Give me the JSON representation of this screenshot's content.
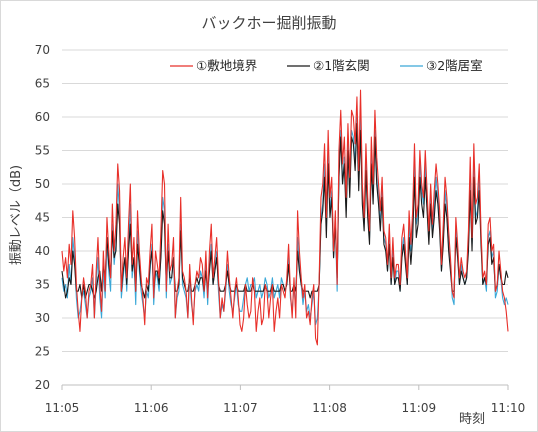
{
  "chart_data": {
    "type": "line",
    "title": "バックホー掘削振動",
    "xlabel": "時刻",
    "ylabel": "振動レベル（dB)",
    "ylim": [
      20,
      70
    ],
    "yticks": [
      "20",
      "25",
      "30",
      "35",
      "40",
      "45",
      "50",
      "55",
      "60",
      "65",
      "70"
    ],
    "xlim": [
      "11:05",
      "11:10"
    ],
    "xticks": [
      "11:05",
      "11:06",
      "11:07",
      "11:08",
      "11:09",
      "11:10"
    ],
    "grid": true,
    "legend_position": "top-right",
    "sample_interval_seconds": 2,
    "series": [
      {
        "name": "①敷地境界",
        "color": "#e8302a",
        "values": [
          40,
          37,
          39,
          36,
          41,
          38,
          46,
          42,
          35,
          31,
          28,
          33,
          36,
          34,
          30,
          34,
          35,
          38,
          30,
          37,
          42,
          35,
          31,
          40,
          34,
          45,
          40,
          36,
          47,
          40,
          44,
          53,
          49,
          34,
          39,
          42,
          36,
          44,
          50,
          38,
          42,
          34,
          46,
          40,
          36,
          33,
          29,
          36,
          35,
          40,
          44,
          33,
          40,
          38,
          36,
          43,
          52,
          50,
          34,
          44,
          37,
          38,
          42,
          30,
          34,
          36,
          48,
          37,
          36,
          34,
          30,
          38,
          33,
          29,
          35,
          37,
          36,
          39,
          38,
          34,
          40,
          33,
          40,
          44,
          36,
          39,
          42,
          36,
          30,
          33,
          31,
          35,
          40,
          36,
          33,
          30,
          34,
          36,
          33,
          29,
          28,
          30,
          35,
          32,
          30,
          31,
          36,
          34,
          28,
          31,
          33,
          29,
          30,
          35,
          34,
          30,
          33,
          35,
          28,
          31,
          33,
          30,
          35,
          34,
          33,
          36,
          41,
          34,
          30,
          36,
          30,
          46,
          40,
          36,
          33,
          35,
          30,
          31,
          29,
          33,
          35,
          27,
          26,
          36,
          48,
          50,
          56,
          45,
          58,
          48,
          51,
          40,
          46,
          35,
          55,
          61,
          53,
          57,
          48,
          59,
          51,
          61,
          60,
          56,
          63,
          52,
          64,
          50,
          45,
          56,
          48,
          43,
          57,
          50,
          61,
          54,
          50,
          46,
          51,
          43,
          42,
          38,
          44,
          36,
          42,
          36,
          38,
          38,
          35,
          42,
          44,
          40,
          36,
          46,
          41,
          46,
          56,
          45,
          47,
          55,
          50,
          48,
          55,
          49,
          43,
          50,
          44,
          49,
          53,
          50,
          46,
          38,
          44,
          51,
          48,
          43,
          39,
          34,
          33,
          45,
          41,
          36,
          39,
          37,
          36,
          37,
          43,
          54,
          42,
          56,
          47,
          48,
          53,
          43,
          36,
          37,
          35,
          44,
          45,
          40,
          41,
          34,
          35,
          40,
          37,
          34,
          33,
          31,
          28
        ]
      },
      {
        "name": "②1階玄関",
        "color": "#1a1a1a",
        "values": [
          37,
          35,
          33,
          34,
          36,
          35,
          40,
          38,
          34,
          34,
          35,
          33,
          35,
          33,
          34,
          35,
          35,
          34,
          33,
          34,
          36,
          37,
          34,
          38,
          36,
          42,
          38,
          36,
          43,
          39,
          40,
          47,
          44,
          34,
          37,
          39,
          35,
          40,
          44,
          37,
          39,
          34,
          41,
          38,
          35,
          34,
          33,
          35,
          34,
          38,
          40,
          34,
          37,
          37,
          35,
          39,
          46,
          44,
          35,
          40,
          36,
          36,
          39,
          34,
          34,
          35,
          43,
          36,
          35,
          34,
          34,
          36,
          34,
          34,
          35,
          36,
          35,
          36,
          36,
          34,
          37,
          34,
          37,
          40,
          35,
          37,
          39,
          35,
          34,
          34,
          34,
          35,
          37,
          35,
          34,
          34,
          34,
          35,
          34,
          34,
          34,
          34,
          35,
          34,
          34,
          34,
          35,
          34,
          34,
          34,
          34,
          34,
          34,
          35,
          34,
          34,
          34,
          35,
          34,
          34,
          34,
          34,
          35,
          35,
          34,
          35,
          38,
          34,
          34,
          35,
          34,
          40,
          37,
          35,
          34,
          34,
          34,
          34,
          33,
          34,
          34,
          34,
          34,
          35,
          44,
          46,
          51,
          42,
          53,
          45,
          48,
          39,
          44,
          36,
          51,
          57,
          50,
          53,
          45,
          55,
          48,
          57,
          56,
          52,
          59,
          49,
          58,
          47,
          43,
          52,
          45,
          41,
          53,
          47,
          57,
          50,
          47,
          43,
          48,
          41,
          40,
          37,
          41,
          35,
          39,
          35,
          36,
          36,
          34,
          39,
          41,
          38,
          35,
          42,
          38,
          42,
          51,
          42,
          44,
          51,
          47,
          45,
          51,
          46,
          41,
          47,
          42,
          45,
          49,
          47,
          43,
          37,
          41,
          47,
          45,
          40,
          37,
          34,
          34,
          42,
          39,
          35,
          37,
          36,
          35,
          36,
          40,
          49,
          40,
          51,
          44,
          45,
          49,
          41,
          35,
          36,
          35,
          41,
          42,
          38,
          39,
          34,
          35,
          38,
          36,
          35,
          35,
          37,
          36
        ]
      },
      {
        "name": "③2階居室",
        "color": "#3aa8d8",
        "values": [
          36,
          34,
          35,
          33,
          38,
          35,
          42,
          39,
          33,
          30,
          31,
          33,
          34,
          32,
          30,
          33,
          34,
          36,
          30,
          35,
          39,
          33,
          30,
          37,
          33,
          41,
          37,
          34,
          44,
          38,
          41,
          50,
          46,
          33,
          36,
          39,
          34,
          41,
          47,
          36,
          39,
          32,
          43,
          37,
          34,
          32,
          30,
          34,
          33,
          37,
          41,
          32,
          37,
          36,
          34,
          40,
          48,
          46,
          33,
          41,
          35,
          36,
          39,
          30,
          33,
          34,
          44,
          35,
          34,
          33,
          30,
          36,
          32,
          30,
          34,
          35,
          34,
          37,
          36,
          33,
          38,
          32,
          38,
          41,
          35,
          37,
          40,
          34,
          30,
          32,
          31,
          34,
          38,
          34,
          32,
          31,
          33,
          35,
          32,
          31,
          31,
          33,
          35,
          36,
          34,
          35,
          35,
          36,
          33,
          34,
          35,
          33,
          34,
          36,
          35,
          33,
          34,
          36,
          33,
          34,
          35,
          33,
          36,
          35,
          34,
          35,
          39,
          33,
          31,
          35,
          31,
          42,
          38,
          35,
          32,
          34,
          31,
          32,
          30,
          32,
          34,
          29,
          30,
          35,
          45,
          47,
          53,
          43,
          55,
          46,
          49,
          39,
          44,
          34,
          52,
          58,
          50,
          54,
          46,
          56,
          49,
          58,
          57,
          53,
          60,
          50,
          61,
          48,
          44,
          53,
          46,
          42,
          54,
          48,
          58,
          51,
          48,
          44,
          49,
          42,
          41,
          37,
          42,
          35,
          40,
          35,
          37,
          37,
          34,
          40,
          42,
          39,
          35,
          44,
          40,
          45,
          54,
          44,
          46,
          53,
          49,
          47,
          53,
          48,
          42,
          48,
          43,
          47,
          51,
          48,
          44,
          37,
          42,
          49,
          46,
          41,
          38,
          33,
          32,
          43,
          40,
          35,
          38,
          36,
          35,
          36,
          41,
          52,
          41,
          54,
          45,
          46,
          51,
          42,
          35,
          36,
          34,
          42,
          43,
          39,
          40,
          33,
          34,
          38,
          36,
          33,
          32,
          33,
          32
        ]
      }
    ]
  }
}
